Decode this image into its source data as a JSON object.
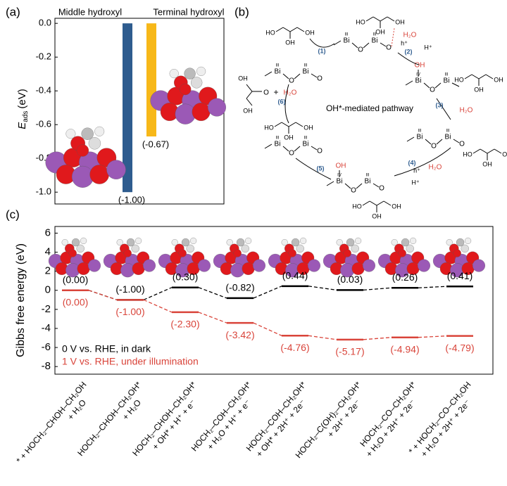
{
  "panel_labels": [
    "(a)",
    "(b)",
    "(c)"
  ],
  "chart_data": [
    {
      "type": "bar",
      "ylabel": {
        "symbol": "E",
        "subscript": "ads",
        "unit": "(eV)"
      },
      "categories": [
        "Middle hydroxyl",
        "Terminal hydroxyl"
      ],
      "values": [
        -1.0,
        -0.67
      ],
      "value_labels": [
        "(-1.00)",
        "(-0.67)"
      ],
      "colors": [
        "#2e5c8f",
        "#f7b819"
      ],
      "ylim": [
        -1.07,
        0.03
      ],
      "yticks": [
        {
          "value": 0,
          "label": "0.0"
        },
        -0.2,
        -0.4,
        -0.6,
        -0.8,
        {
          "value": -1.0,
          "label": "-1.0"
        }
      ]
    },
    {
      "type": "energy-levels",
      "ylabel": "Gibbs free energy (eV)",
      "categories": [
        [
          "* + HOCH₂–CHOH–CH₂OH",
          "+ H₂O"
        ],
        [
          "HOCH₂–CHOH–CH₂OH*",
          "+ H₂O"
        ],
        [
          "HOCH₂–CHOH–CH₂OH*",
          "+ OH* + H⁺ + e⁻"
        ],
        [
          "HOCH₂–COH–CH₂OH*",
          "+ H₂O + H⁺ + e⁻"
        ],
        [
          "HOCH₂–COH–CH₂OH*",
          "+ OH* + 2H⁺ + 2e⁻"
        ],
        [
          "HOCH₂–C(OH)₂–CH₂OH*",
          "+ 2H⁺ + 2e⁻"
        ],
        [
          "HOCH₂–CO–CH₂OH*",
          "+ H₂O + 2H⁺ + 2e⁻"
        ],
        [
          "* + HOCH₂–CO–CH₂OH",
          "+ H₂O + 2H⁺ + 2e⁻"
        ]
      ],
      "series": [
        {
          "name": "0 V vs. RHE, in dark",
          "color": "#000000",
          "values": [
            0.0,
            -1.0,
            0.3,
            -0.82,
            0.44,
            0.03,
            0.26,
            0.41
          ],
          "value_labels": [
            "(0.00)",
            "(-1.00)",
            "(0.30)",
            "(-0.82)",
            "(0.44)",
            "(0.03)",
            "(0.26)",
            "(0.41)"
          ]
        },
        {
          "name": "1 V vs. RHE, under illumination",
          "color": "#d9443a",
          "values": [
            0.0,
            -1.0,
            -2.3,
            -3.42,
            -4.76,
            -5.17,
            -4.94,
            -4.79
          ],
          "value_labels": [
            "(0.00)",
            "(-1.00)",
            "(-2.30)",
            "(-3.42)",
            "(-4.76)",
            "(-5.17)",
            "(-4.94)",
            "(-4.79)"
          ]
        }
      ],
      "ylim": [
        -8.8,
        6.7
      ],
      "yticks": [
        6,
        4,
        2,
        0,
        -2,
        -4,
        -6,
        -8
      ],
      "legend": "bottom-left"
    }
  ],
  "diagram": {
    "center_label": "OH*-mediated pathway",
    "steps": [
      "(1)",
      "(2)",
      "(3)",
      "(4)",
      "(5)",
      "(6)"
    ],
    "species": {
      "water": "H₂O",
      "hole": "h⁺",
      "proton": "H⁺",
      "plus": "+"
    },
    "atom_labels": {
      "bi": "Bi",
      "o": "O",
      "oh": "OH",
      "ho": "HO",
      "h": "H",
      "ox3": "III",
      "ox4": "IV"
    }
  }
}
